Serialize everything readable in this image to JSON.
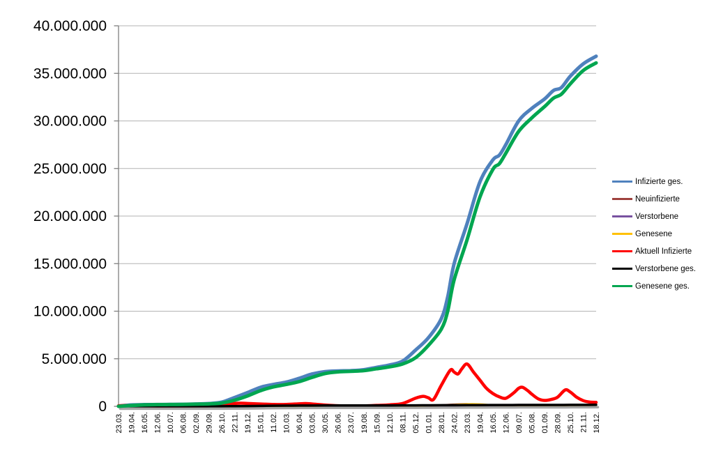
{
  "chart_data": {
    "type": "line",
    "title": "",
    "xlabel": "",
    "ylabel": "",
    "y_axis": {
      "min": 0,
      "max_millions": 40,
      "tick_interval_millions": 5,
      "tick_labels": [
        "40.000.000",
        "35.000.000",
        "30.000.000",
        "25.000.000",
        "20.000.000",
        "15.000.000",
        "10.000.000",
        "5.000.000",
        "0"
      ],
      "gridlines": true
    },
    "x_axis": {
      "tick_labels": [
        "23.03.",
        "19.04.",
        "16.05.",
        "12.06.",
        "10.07.",
        "06.08.",
        "02.09.",
        "29.09.",
        "26.10.",
        "22.11.",
        "19.12.",
        "15.01.",
        "11.02.",
        "10.03.",
        "06.04.",
        "03.05.",
        "30.05.",
        "26.06.",
        "23.07.",
        "19.08.",
        "15.09.",
        "12.10.",
        "08.11.",
        "05.12.",
        "01.01.",
        "28.01.",
        "24.02.",
        "23.03.",
        "19.04.",
        "16.05.",
        "12.06.",
        "09.07.",
        "05.08.",
        "01.09.",
        "28.09.",
        "25.10.",
        "21.11.",
        "18.12."
      ],
      "label_rotation_deg": -90
    },
    "legend": {
      "position": "right",
      "entries": [
        "Infizierte ges.",
        "Neuinfizierte",
        "Verstorbene",
        "Genesene",
        "Aktuell Infizierte",
        "Verstorbene ges.",
        "Genesene ges."
      ]
    },
    "value_unit": "millions",
    "series": [
      {
        "name": "Infizierte ges.",
        "color": "#4F81BD",
        "width": 5,
        "points": [
          [
            0,
            0.03
          ],
          [
            1,
            0.145
          ],
          [
            2,
            0.18
          ],
          [
            3,
            0.19
          ],
          [
            4,
            0.2
          ],
          [
            5,
            0.215
          ],
          [
            6,
            0.25
          ],
          [
            7,
            0.29
          ],
          [
            8,
            0.44
          ],
          [
            9,
            0.93
          ],
          [
            10,
            1.45
          ],
          [
            11,
            2.0
          ],
          [
            12,
            2.3
          ],
          [
            13,
            2.55
          ],
          [
            14,
            2.95
          ],
          [
            15,
            3.4
          ],
          [
            16,
            3.65
          ],
          [
            17,
            3.72
          ],
          [
            18,
            3.75
          ],
          [
            19,
            3.85
          ],
          [
            20,
            4.1
          ],
          [
            21,
            4.35
          ],
          [
            22,
            4.75
          ],
          [
            23,
            5.9
          ],
          [
            24,
            7.2
          ],
          [
            25,
            9.2
          ],
          [
            25.5,
            11.5
          ],
          [
            26,
            15.0
          ],
          [
            27,
            19.2
          ],
          [
            28,
            23.6
          ],
          [
            29,
            25.9
          ],
          [
            29.5,
            26.4
          ],
          [
            30,
            27.5
          ],
          [
            31,
            30.0
          ],
          [
            32,
            31.3
          ],
          [
            33,
            32.3
          ],
          [
            33.7,
            33.2
          ],
          [
            34.3,
            33.5
          ],
          [
            35,
            34.7
          ],
          [
            36,
            36.0
          ],
          [
            37,
            36.8
          ]
        ]
      },
      {
        "name": "Neuinfizierte",
        "color": "#9E413E",
        "width": 2.5,
        "points": [
          [
            0,
            0.004
          ],
          [
            1,
            0.004
          ],
          [
            2,
            0.001
          ],
          [
            3,
            0.001
          ],
          [
            4,
            0.001
          ],
          [
            5,
            0.001
          ],
          [
            6,
            0.002
          ],
          [
            7,
            0.003
          ],
          [
            8,
            0.01
          ],
          [
            9,
            0.022
          ],
          [
            10,
            0.025
          ],
          [
            11,
            0.018
          ],
          [
            12,
            0.01
          ],
          [
            13,
            0.012
          ],
          [
            14,
            0.021
          ],
          [
            15,
            0.018
          ],
          [
            16,
            0.006
          ],
          [
            17,
            0.001
          ],
          [
            18,
            0.002
          ],
          [
            19,
            0.005
          ],
          [
            20,
            0.008
          ],
          [
            21,
            0.012
          ],
          [
            22,
            0.03
          ],
          [
            23,
            0.06
          ],
          [
            24,
            0.05
          ],
          [
            25,
            0.13
          ],
          [
            26,
            0.21
          ],
          [
            27,
            0.25
          ],
          [
            28,
            0.16
          ],
          [
            29,
            0.07
          ],
          [
            30,
            0.06
          ],
          [
            31,
            0.1
          ],
          [
            32,
            0.07
          ],
          [
            33,
            0.04
          ],
          [
            34,
            0.06
          ],
          [
            35,
            0.1
          ],
          [
            36,
            0.04
          ],
          [
            37,
            0.03
          ]
        ]
      },
      {
        "name": "Verstorbene",
        "color": "#7852A0",
        "width": 2.5,
        "points": [
          [
            0,
            0.0008
          ],
          [
            5,
            0.001
          ],
          [
            10,
            0.003
          ],
          [
            12,
            0.006
          ],
          [
            14,
            0.002
          ],
          [
            20,
            0.001
          ],
          [
            23,
            0.002
          ],
          [
            25,
            0.002
          ],
          [
            27,
            0.0015
          ],
          [
            30,
            0.001
          ],
          [
            34,
            0.001
          ],
          [
            37,
            0.0012
          ]
        ]
      },
      {
        "name": "Genesene",
        "color": "#FFC000",
        "width": 2.5,
        "points": [
          [
            0,
            0.003
          ],
          [
            1,
            0.004
          ],
          [
            2,
            0.002
          ],
          [
            3,
            0.001
          ],
          [
            4,
            0.001
          ],
          [
            5,
            0.001
          ],
          [
            6,
            0.001
          ],
          [
            7,
            0.002
          ],
          [
            8,
            0.006
          ],
          [
            9,
            0.015
          ],
          [
            10,
            0.022
          ],
          [
            11,
            0.02
          ],
          [
            12,
            0.012
          ],
          [
            13,
            0.01
          ],
          [
            14,
            0.016
          ],
          [
            15,
            0.02
          ],
          [
            16,
            0.01
          ],
          [
            17,
            0.003
          ],
          [
            18,
            0.001
          ],
          [
            19,
            0.003
          ],
          [
            20,
            0.006
          ],
          [
            21,
            0.009
          ],
          [
            22,
            0.015
          ],
          [
            23,
            0.04
          ],
          [
            24,
            0.07
          ],
          [
            25,
            0.09
          ],
          [
            26,
            0.17
          ],
          [
            27,
            0.24
          ],
          [
            28,
            0.23
          ],
          [
            29,
            0.13
          ],
          [
            30,
            0.07
          ],
          [
            31,
            0.08
          ],
          [
            32,
            0.08
          ],
          [
            33,
            0.05
          ],
          [
            34,
            0.04
          ],
          [
            35,
            0.07
          ],
          [
            36,
            0.06
          ],
          [
            37,
            0.04
          ]
        ]
      },
      {
        "name": "Aktuell Infizierte",
        "color": "#FF0000",
        "width": 4.5,
        "points": [
          [
            0,
            0.06
          ],
          [
            0.5,
            0.08
          ],
          [
            1,
            0.06
          ],
          [
            2,
            0.04
          ],
          [
            3,
            0.02
          ],
          [
            4,
            0.02
          ],
          [
            5,
            0.02
          ],
          [
            6,
            0.03
          ],
          [
            7,
            0.05
          ],
          [
            8,
            0.12
          ],
          [
            9,
            0.3
          ],
          [
            9.5,
            0.33
          ],
          [
            10,
            0.3
          ],
          [
            11,
            0.25
          ],
          [
            12,
            0.2
          ],
          [
            13,
            0.2
          ],
          [
            14,
            0.27
          ],
          [
            14.5,
            0.29
          ],
          [
            15,
            0.25
          ],
          [
            16,
            0.14
          ],
          [
            17,
            0.06
          ],
          [
            18,
            0.03
          ],
          [
            19,
            0.05
          ],
          [
            20,
            0.1
          ],
          [
            21,
            0.16
          ],
          [
            22,
            0.3
          ],
          [
            23,
            0.85
          ],
          [
            23.6,
            1.05
          ],
          [
            24,
            0.9
          ],
          [
            24.4,
            0.72
          ],
          [
            25,
            2.2
          ],
          [
            25.7,
            3.8
          ],
          [
            26,
            3.6
          ],
          [
            26.3,
            3.4
          ],
          [
            26.6,
            3.95
          ],
          [
            27,
            4.45
          ],
          [
            27.5,
            3.6
          ],
          [
            28,
            2.75
          ],
          [
            28.5,
            1.9
          ],
          [
            29,
            1.35
          ],
          [
            29.5,
            1.0
          ],
          [
            30,
            0.85
          ],
          [
            30.6,
            1.4
          ],
          [
            31,
            1.9
          ],
          [
            31.3,
            2.0
          ],
          [
            31.7,
            1.65
          ],
          [
            32,
            1.3
          ],
          [
            32.5,
            0.8
          ],
          [
            33,
            0.62
          ],
          [
            33.5,
            0.72
          ],
          [
            34,
            0.95
          ],
          [
            34.6,
            1.72
          ],
          [
            35,
            1.5
          ],
          [
            35.5,
            0.95
          ],
          [
            36,
            0.6
          ],
          [
            36.5,
            0.45
          ],
          [
            37,
            0.42
          ]
        ]
      },
      {
        "name": "Verstorbene ges.",
        "color": "#000000",
        "width": 3.5,
        "shadow": true,
        "points": [
          [
            0,
            0.002
          ],
          [
            2,
            0.008
          ],
          [
            4,
            0.009
          ],
          [
            6,
            0.0095
          ],
          [
            8,
            0.012
          ],
          [
            9,
            0.016
          ],
          [
            10,
            0.027
          ],
          [
            11,
            0.047
          ],
          [
            12,
            0.064
          ],
          [
            13,
            0.073
          ],
          [
            14,
            0.078
          ],
          [
            15,
            0.084
          ],
          [
            16,
            0.088
          ],
          [
            17,
            0.09
          ],
          [
            18,
            0.091
          ],
          [
            19,
            0.092
          ],
          [
            20,
            0.093
          ],
          [
            21,
            0.095
          ],
          [
            22,
            0.097
          ],
          [
            23,
            0.103
          ],
          [
            24,
            0.112
          ],
          [
            25,
            0.118
          ],
          [
            26,
            0.122
          ],
          [
            27,
            0.127
          ],
          [
            28,
            0.132
          ],
          [
            29,
            0.137
          ],
          [
            30,
            0.14
          ],
          [
            31,
            0.142
          ],
          [
            32,
            0.144
          ],
          [
            33,
            0.146
          ],
          [
            34,
            0.149
          ],
          [
            35,
            0.152
          ],
          [
            36,
            0.156
          ],
          [
            37,
            0.161
          ]
        ]
      },
      {
        "name": "Genesene ges.",
        "color": "#00A650",
        "width": 5,
        "points": [
          [
            0,
            0.004
          ],
          [
            1,
            0.09
          ],
          [
            2,
            0.16
          ],
          [
            3,
            0.18
          ],
          [
            4,
            0.19
          ],
          [
            5,
            0.2
          ],
          [
            6,
            0.23
          ],
          [
            7,
            0.26
          ],
          [
            8,
            0.35
          ],
          [
            9,
            0.65
          ],
          [
            10,
            1.1
          ],
          [
            11,
            1.65
          ],
          [
            12,
            2.05
          ],
          [
            13,
            2.3
          ],
          [
            14,
            2.6
          ],
          [
            15,
            3.05
          ],
          [
            16,
            3.45
          ],
          [
            17,
            3.62
          ],
          [
            18,
            3.68
          ],
          [
            19,
            3.75
          ],
          [
            20,
            3.95
          ],
          [
            21,
            4.15
          ],
          [
            22,
            4.45
          ],
          [
            23,
            5.1
          ],
          [
            24,
            6.4
          ],
          [
            25,
            8.1
          ],
          [
            25.5,
            10.0
          ],
          [
            26,
            13.3
          ],
          [
            27,
            17.5
          ],
          [
            28,
            22.0
          ],
          [
            29,
            24.9
          ],
          [
            29.5,
            25.5
          ],
          [
            30,
            26.6
          ],
          [
            31,
            28.9
          ],
          [
            32,
            30.3
          ],
          [
            33,
            31.5
          ],
          [
            33.7,
            32.4
          ],
          [
            34.3,
            32.8
          ],
          [
            35,
            33.9
          ],
          [
            36,
            35.3
          ],
          [
            37,
            36.1
          ]
        ]
      }
    ],
    "style": {
      "gridline_color": "#B3B3B3",
      "axis_color": "#808080",
      "shadow_color": "#A6A6A6",
      "background": "#FFFFFF"
    }
  }
}
